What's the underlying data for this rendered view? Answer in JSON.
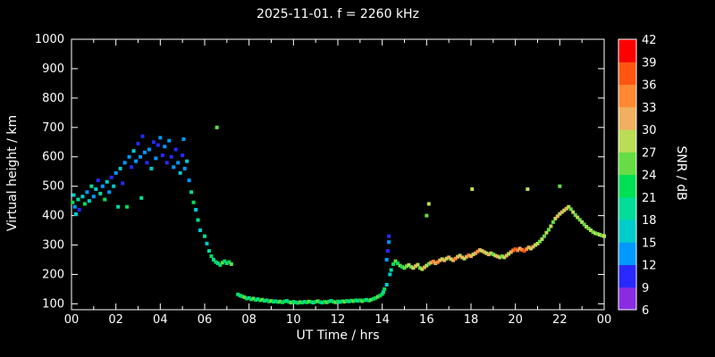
{
  "chart_data": {
    "type": "scatter",
    "title": "2025-11-01. f = 2260 kHz",
    "xlabel": "UT Time / hrs",
    "ylabel": "Virtual height / km",
    "colorbar_label": "SNR / dB",
    "xlim": [
      0,
      24
    ],
    "ylim": [
      80,
      1000
    ],
    "grid": false,
    "xticks": {
      "values": [
        0,
        2,
        4,
        6,
        8,
        10,
        12,
        14,
        16,
        18,
        20,
        22,
        24
      ],
      "labels": [
        "00",
        "02",
        "04",
        "06",
        "08",
        "10",
        "12",
        "14",
        "16",
        "18",
        "20",
        "22",
        "00"
      ]
    },
    "yticks": [
      100,
      200,
      300,
      400,
      500,
      600,
      700,
      800,
      900,
      1000
    ],
    "colorbar": {
      "min": 6,
      "max": 42,
      "step": 3,
      "tick_labels": [
        42,
        39,
        36,
        33,
        30,
        27,
        24,
        21,
        18,
        15,
        12,
        9,
        6
      ],
      "colors_bottom_to_top": [
        "#8a2be2",
        "#2929ff",
        "#0099ff",
        "#00cccc",
        "#00dd99",
        "#00e055",
        "#66dd44",
        "#bbdd55",
        "#f0b060",
        "#ff8833",
        "#ff5511",
        "#ff0000"
      ]
    },
    "points_format": [
      "ut_hours",
      "virtual_height_km",
      "snr_db"
    ],
    "points": [
      [
        0.05,
        445,
        21
      ],
      [
        0.1,
        470,
        15
      ],
      [
        0.15,
        430,
        12
      ],
      [
        0.2,
        405,
        15
      ],
      [
        0.3,
        455,
        18
      ],
      [
        0.35,
        420,
        9
      ],
      [
        0.5,
        465,
        15
      ],
      [
        0.6,
        440,
        21
      ],
      [
        0.7,
        480,
        12
      ],
      [
        0.8,
        450,
        15
      ],
      [
        0.9,
        500,
        18
      ],
      [
        1.0,
        465,
        12
      ],
      [
        1.1,
        490,
        15
      ],
      [
        1.2,
        520,
        9
      ],
      [
        1.3,
        475,
        18
      ],
      [
        1.4,
        500,
        12
      ],
      [
        1.5,
        455,
        21
      ],
      [
        1.6,
        515,
        15
      ],
      [
        1.7,
        480,
        12
      ],
      [
        1.8,
        530,
        9
      ],
      [
        1.9,
        500,
        15
      ],
      [
        2.0,
        545,
        12
      ],
      [
        2.1,
        430,
        18
      ],
      [
        2.2,
        560,
        15
      ],
      [
        2.3,
        510,
        9
      ],
      [
        2.4,
        580,
        12
      ],
      [
        2.5,
        430,
        21
      ],
      [
        2.6,
        600,
        12
      ],
      [
        2.7,
        565,
        9
      ],
      [
        2.8,
        620,
        15
      ],
      [
        2.9,
        585,
        12
      ],
      [
        3.0,
        645,
        9
      ],
      [
        3.1,
        600,
        12
      ],
      [
        3.15,
        460,
        18
      ],
      [
        3.2,
        670,
        9
      ],
      [
        3.3,
        615,
        12
      ],
      [
        3.4,
        580,
        9
      ],
      [
        3.5,
        625,
        12
      ],
      [
        3.6,
        560,
        15
      ],
      [
        3.7,
        650,
        9
      ],
      [
        3.8,
        595,
        12
      ],
      [
        3.9,
        640,
        9
      ],
      [
        4.0,
        665,
        12
      ],
      [
        4.1,
        605,
        9
      ],
      [
        4.2,
        635,
        12
      ],
      [
        4.3,
        580,
        9
      ],
      [
        4.4,
        655,
        12
      ],
      [
        4.5,
        600,
        9
      ],
      [
        4.6,
        565,
        12
      ],
      [
        4.7,
        625,
        9
      ],
      [
        4.8,
        580,
        12
      ],
      [
        4.9,
        545,
        15
      ],
      [
        5.0,
        605,
        9
      ],
      [
        5.05,
        660,
        12
      ],
      [
        5.1,
        560,
        12
      ],
      [
        5.2,
        585,
        15
      ],
      [
        5.3,
        520,
        12
      ],
      [
        5.4,
        480,
        18
      ],
      [
        5.5,
        445,
        21
      ],
      [
        5.6,
        420,
        15
      ],
      [
        5.7,
        385,
        18
      ],
      [
        5.8,
        350,
        15
      ],
      [
        6.0,
        330,
        18
      ],
      [
        6.1,
        305,
        15
      ],
      [
        6.2,
        280,
        18
      ],
      [
        6.3,
        262,
        21
      ],
      [
        6.4,
        250,
        18
      ],
      [
        6.5,
        242,
        21
      ],
      [
        6.55,
        700,
        24
      ],
      [
        6.6,
        238,
        18
      ],
      [
        6.7,
        232,
        21
      ],
      [
        6.8,
        240,
        24
      ],
      [
        6.9,
        245,
        21
      ],
      [
        7.0,
        238,
        18
      ],
      [
        7.1,
        242,
        21
      ],
      [
        7.2,
        235,
        24
      ],
      [
        7.5,
        132,
        21
      ],
      [
        7.6,
        128,
        18
      ],
      [
        7.7,
        125,
        21
      ],
      [
        7.8,
        122,
        24
      ],
      [
        7.9,
        118,
        21
      ],
      [
        8.0,
        120,
        18
      ],
      [
        8.1,
        115,
        21
      ],
      [
        8.2,
        118,
        24
      ],
      [
        8.3,
        113,
        21
      ],
      [
        8.4,
        116,
        18
      ],
      [
        8.5,
        112,
        21
      ],
      [
        8.6,
        114,
        24
      ],
      [
        8.7,
        110,
        21
      ],
      [
        8.8,
        112,
        18
      ],
      [
        8.9,
        108,
        21
      ],
      [
        9.0,
        110,
        24
      ],
      [
        9.1,
        107,
        21
      ],
      [
        9.2,
        109,
        18
      ],
      [
        9.3,
        106,
        21
      ],
      [
        9.4,
        108,
        24
      ],
      [
        9.5,
        105,
        21
      ],
      [
        9.6,
        108,
        21
      ],
      [
        9.7,
        110,
        18
      ],
      [
        9.8,
        106,
        21
      ],
      [
        9.9,
        104,
        24
      ],
      [
        10.0,
        107,
        21
      ],
      [
        10.1,
        105,
        18
      ],
      [
        10.2,
        103,
        21
      ],
      [
        10.3,
        106,
        24
      ],
      [
        10.4,
        104,
        21
      ],
      [
        10.5,
        107,
        18
      ],
      [
        10.6,
        105,
        21
      ],
      [
        10.7,
        108,
        24
      ],
      [
        10.8,
        106,
        21
      ],
      [
        10.9,
        104,
        18
      ],
      [
        11.0,
        107,
        21
      ],
      [
        11.1,
        109,
        24
      ],
      [
        11.2,
        106,
        21
      ],
      [
        11.3,
        104,
        18
      ],
      [
        11.4,
        107,
        21
      ],
      [
        11.5,
        105,
        24
      ],
      [
        11.6,
        108,
        21
      ],
      [
        11.7,
        110,
        18
      ],
      [
        11.8,
        107,
        21
      ],
      [
        11.9,
        105,
        24
      ],
      [
        12.0,
        108,
        21
      ],
      [
        12.1,
        106,
        18
      ],
      [
        12.2,
        109,
        21
      ],
      [
        12.3,
        107,
        24
      ],
      [
        12.4,
        110,
        21
      ],
      [
        12.5,
        108,
        18
      ],
      [
        12.6,
        111,
        21
      ],
      [
        12.7,
        109,
        24
      ],
      [
        12.8,
        112,
        21
      ],
      [
        12.9,
        110,
        18
      ],
      [
        13.0,
        112,
        21
      ],
      [
        13.1,
        109,
        24
      ],
      [
        13.2,
        112,
        21
      ],
      [
        13.3,
        114,
        18
      ],
      [
        13.4,
        111,
        21
      ],
      [
        13.5,
        114,
        24
      ],
      [
        13.6,
        117,
        21
      ],
      [
        13.7,
        120,
        21
      ],
      [
        13.8,
        124,
        24
      ],
      [
        13.9,
        128,
        21
      ],
      [
        14.0,
        133,
        21
      ],
      [
        14.05,
        140,
        18
      ],
      [
        14.1,
        150,
        21
      ],
      [
        14.2,
        165,
        15
      ],
      [
        14.2,
        250,
        12
      ],
      [
        14.25,
        280,
        9
      ],
      [
        14.3,
        310,
        12
      ],
      [
        14.3,
        330,
        9
      ],
      [
        14.35,
        200,
        15
      ],
      [
        14.4,
        215,
        18
      ],
      [
        14.5,
        235,
        21
      ],
      [
        14.6,
        245,
        24
      ],
      [
        14.7,
        238,
        21
      ],
      [
        14.8,
        230,
        24
      ],
      [
        14.9,
        226,
        21
      ],
      [
        15.0,
        222,
        24
      ],
      [
        15.1,
        228,
        24
      ],
      [
        15.2,
        232,
        27
      ],
      [
        15.3,
        226,
        24
      ],
      [
        15.4,
        222,
        27
      ],
      [
        15.5,
        228,
        30
      ],
      [
        15.6,
        233,
        27
      ],
      [
        15.7,
        222,
        24
      ],
      [
        15.8,
        218,
        27
      ],
      [
        15.9,
        224,
        30
      ],
      [
        16.0,
        230,
        27
      ],
      [
        16.0,
        400,
        24
      ],
      [
        16.1,
        440,
        27
      ],
      [
        16.1,
        236,
        24
      ],
      [
        16.2,
        240,
        30
      ],
      [
        16.3,
        244,
        33
      ],
      [
        16.4,
        238,
        30
      ],
      [
        16.5,
        242,
        33
      ],
      [
        16.6,
        248,
        30
      ],
      [
        16.7,
        252,
        27
      ],
      [
        16.8,
        248,
        30
      ],
      [
        16.9,
        254,
        27
      ],
      [
        17.0,
        258,
        30
      ],
      [
        17.1,
        252,
        27
      ],
      [
        17.2,
        248,
        30
      ],
      [
        17.3,
        254,
        33
      ],
      [
        17.4,
        260,
        30
      ],
      [
        17.5,
        264,
        27
      ],
      [
        17.6,
        258,
        30
      ],
      [
        17.7,
        254,
        27
      ],
      [
        17.8,
        260,
        30
      ],
      [
        17.9,
        265,
        33
      ],
      [
        18.0,
        262,
        30
      ],
      [
        18.05,
        490,
        27
      ],
      [
        18.1,
        268,
        27
      ],
      [
        18.2,
        272,
        30
      ],
      [
        18.3,
        278,
        33
      ],
      [
        18.4,
        283,
        30
      ],
      [
        18.5,
        280,
        27
      ],
      [
        18.6,
        276,
        30
      ],
      [
        18.7,
        272,
        27
      ],
      [
        18.8,
        268,
        30
      ],
      [
        18.9,
        272,
        27
      ],
      [
        19.0,
        268,
        24
      ],
      [
        19.1,
        264,
        27
      ],
      [
        19.2,
        261,
        30
      ],
      [
        19.3,
        258,
        27
      ],
      [
        19.4,
        262,
        24
      ],
      [
        19.5,
        258,
        27
      ],
      [
        19.6,
        264,
        30
      ],
      [
        19.7,
        270,
        27
      ],
      [
        19.8,
        276,
        30
      ],
      [
        19.9,
        282,
        33
      ],
      [
        20.0,
        286,
        36
      ],
      [
        20.1,
        282,
        33
      ],
      [
        20.2,
        288,
        30
      ],
      [
        20.3,
        284,
        33
      ],
      [
        20.4,
        280,
        36
      ],
      [
        20.5,
        286,
        33
      ],
      [
        20.55,
        490,
        27
      ],
      [
        20.6,
        292,
        30
      ],
      [
        20.7,
        288,
        27
      ],
      [
        20.8,
        294,
        30
      ],
      [
        20.9,
        300,
        27
      ],
      [
        21.0,
        305,
        27
      ],
      [
        21.1,
        312,
        24
      ],
      [
        21.2,
        320,
        27
      ],
      [
        21.3,
        330,
        24
      ],
      [
        21.4,
        342,
        27
      ],
      [
        21.5,
        352,
        24
      ],
      [
        21.6,
        364,
        27
      ],
      [
        21.7,
        378,
        24
      ],
      [
        21.8,
        390,
        27
      ],
      [
        21.9,
        398,
        30
      ],
      [
        22.0,
        406,
        27
      ],
      [
        22.0,
        500,
        24
      ],
      [
        22.1,
        412,
        30
      ],
      [
        22.2,
        418,
        27
      ],
      [
        22.3,
        424,
        30
      ],
      [
        22.4,
        430,
        27
      ],
      [
        22.5,
        422,
        24
      ],
      [
        22.6,
        412,
        27
      ],
      [
        22.7,
        402,
        24
      ],
      [
        22.8,
        394,
        27
      ],
      [
        22.9,
        386,
        24
      ],
      [
        23.0,
        378,
        27
      ],
      [
        23.1,
        370,
        24
      ],
      [
        23.2,
        362,
        27
      ],
      [
        23.3,
        356,
        24
      ],
      [
        23.4,
        350,
        27
      ],
      [
        23.5,
        344,
        24
      ],
      [
        23.6,
        340,
        27
      ],
      [
        23.7,
        338,
        24
      ],
      [
        23.8,
        335,
        27
      ],
      [
        23.9,
        332,
        24
      ],
      [
        24.0,
        330,
        27
      ]
    ]
  }
}
